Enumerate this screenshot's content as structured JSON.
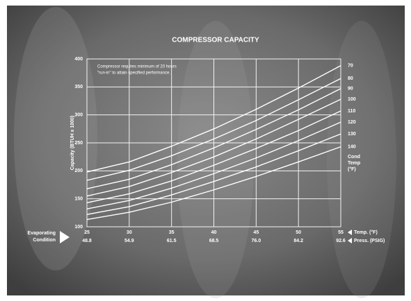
{
  "chart_data": {
    "type": "line",
    "title": "COMPRESSOR CAPACITY",
    "y_label": "Capacity (BTUH x 1000)",
    "annotation": [
      "Compressor requires minimum of 20 hours",
      "\"run-in\" to attain specified performance."
    ],
    "x_label_left": [
      "Evaporating",
      "Condition"
    ],
    "x_label_right": [
      "Temp. (°F)",
      "Press. (PSIG)"
    ],
    "series_title": [
      "Cond",
      "Temp",
      "(°F)"
    ],
    "x": [
      25,
      30,
      35,
      40,
      45,
      50,
      55
    ],
    "xlim": [
      25,
      55
    ],
    "xticks": [
      25,
      30,
      35,
      40,
      45,
      50,
      55
    ],
    "pressure_labels": [
      "48.8",
      "54.9",
      "61.5",
      "68.5",
      "76.0",
      "84.2",
      "92.6"
    ],
    "ylim": [
      100,
      400
    ],
    "yticks": [
      100,
      150,
      200,
      250,
      300,
      350,
      400
    ],
    "grid": true,
    "series": [
      {
        "name": "70",
        "color": "#ffffff",
        "values": [
          198,
          216,
          244,
          275,
          310,
          348,
          388
        ]
      },
      {
        "name": "80",
        "color": "#ffffff",
        "values": [
          183,
          201,
          227,
          257,
          290,
          327,
          365
        ]
      },
      {
        "name": "90",
        "color": "#ffffff",
        "values": [
          168,
          185,
          211,
          241,
          274,
          309,
          347
        ]
      },
      {
        "name": "100",
        "color": "#ffffff",
        "values": [
          155,
          172,
          197,
          225,
          257,
          292,
          328
        ]
      },
      {
        "name": "110",
        "color": "#ffffff",
        "values": [
          143,
          159,
          182,
          210,
          240,
          272,
          307
        ]
      },
      {
        "name": "120",
        "color": "#ffffff",
        "values": [
          132,
          147,
          169,
          195,
          223,
          254,
          287
        ]
      },
      {
        "name": "130",
        "color": "#ffffff",
        "values": [
          122,
          136,
          157,
          181,
          207,
          236,
          266
        ]
      },
      {
        "name": "140",
        "color": "#ffffff",
        "values": [
          113,
          126,
          144,
          166,
          190,
          216,
          243
        ]
      }
    ]
  }
}
